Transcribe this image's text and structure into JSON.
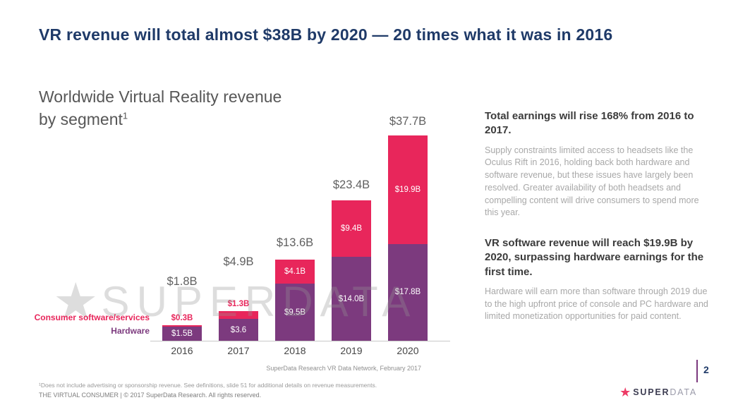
{
  "slide": {
    "title": "VR revenue will total almost $38B by 2020 — 20 times what it was in 2016",
    "page_number": "2"
  },
  "chart": {
    "title_line1": "Worldwide Virtual Reality revenue",
    "title_line2": "by segment",
    "title_footnote_marker": "1",
    "source": "SuperData Research VR Data Network, February 2017",
    "legend": {
      "software_label": "Consumer software/services",
      "hardware_label": "Hardware"
    }
  },
  "chart_data": {
    "type": "bar",
    "stacked": true,
    "title": "Worldwide Virtual Reality revenue by segment",
    "unit": "USD billions",
    "categories": [
      "2016",
      "2017",
      "2018",
      "2019",
      "2020"
    ],
    "series": [
      {
        "name": "Hardware",
        "color": "#7c3a7e",
        "values": [
          1.5,
          3.6,
          9.5,
          14.0,
          17.8
        ],
        "labels": [
          "$1.5B",
          "$3.6",
          "$9.5B",
          "$14.0B",
          "$17.8B"
        ]
      },
      {
        "name": "Consumer software/services",
        "color": "#e8265b",
        "values": [
          0.3,
          1.3,
          4.1,
          9.4,
          19.9
        ],
        "labels": [
          "$0.3B",
          "$1.3B",
          "$4.1B",
          "$9.4B",
          "$19.9B"
        ]
      }
    ],
    "totals": [
      1.8,
      4.9,
      13.6,
      23.4,
      37.7
    ],
    "total_labels": [
      "$1.8B",
      "$4.9B",
      "$13.6B",
      "$23.4B",
      "$37.7B"
    ],
    "ylim": [
      0,
      38
    ],
    "grid": false,
    "legend_position": "left"
  },
  "insights": [
    {
      "heading": "Total earnings will rise 168% from 2016 to 2017.",
      "body": "Supply constraints limited access to headsets like the Oculus Rift in 2016, holding back both hardware and software revenue, but these issues have largely been resolved. Greater availability of both headsets and compelling content will drive consumers to spend more this year."
    },
    {
      "heading": "VR software revenue will reach $19.9B by 2020, surpassing hardware earnings for the first time.",
      "body": "Hardware will earn more than software through 2019 due to the high upfront price of console and PC hardware and limited monetization opportunities for paid content."
    }
  ],
  "watermark": {
    "star_glyph": "★",
    "text": "SUPERDATA"
  },
  "footer": {
    "footnote": "¹Does not include advertising or sponsorship revenue. See definitions, slide 51 for additional details on revenue measurements.",
    "copyright": "THE VIRTUAL CONSUMER  |  © 2017 SuperData Research. All rights reserved.",
    "logo": {
      "star_glyph": "★",
      "brand_bold": "SUPER",
      "brand_light": "DATA"
    }
  },
  "colors": {
    "accent_pink": "#e8265b",
    "accent_purple": "#7c3a7e",
    "title_navy": "#1f3a68"
  }
}
